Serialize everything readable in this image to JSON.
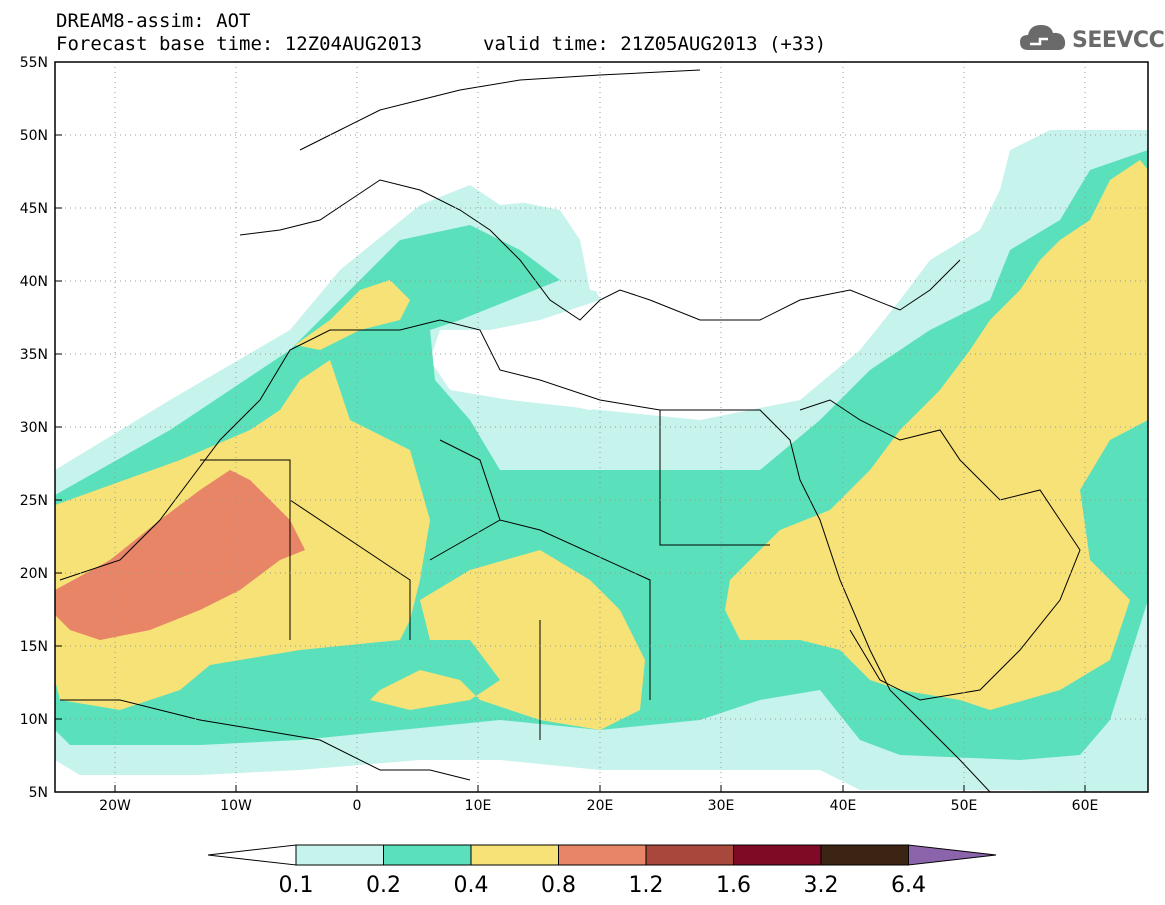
{
  "header": {
    "line1": "DREAM8-assim: AOT",
    "base_time": "Forecast base time: 12Z04AUG2013",
    "valid_time": "valid time: 21Z05AUG2013 (+33)"
  },
  "logo": {
    "text": "SEEVCCC",
    "icon": "cloud-icon",
    "color": "#6a6a6a"
  },
  "map": {
    "lon_range": [
      -25,
      65
    ],
    "lat_range": [
      5,
      55
    ],
    "lon_ticks": [
      "20W",
      "10W",
      "0",
      "10E",
      "20E",
      "30E",
      "40E",
      "50E",
      "60E"
    ],
    "lat_ticks": [
      "55N",
      "50N",
      "45N",
      "40N",
      "35N",
      "30N",
      "25N",
      "20N",
      "15N",
      "10N",
      "5N"
    ],
    "grid": "dotted"
  },
  "colorbar": {
    "labels": [
      "0.1",
      "0.2",
      "0.4",
      "0.8",
      "1.2",
      "1.6",
      "3.2",
      "6.4"
    ],
    "colors": [
      "#ffffff",
      "#c6f3ec",
      "#5be0bc",
      "#f6e276",
      "#e88566",
      "#a8483c",
      "#7e0a26",
      "#3c2414",
      "#8b64ac"
    ]
  }
}
